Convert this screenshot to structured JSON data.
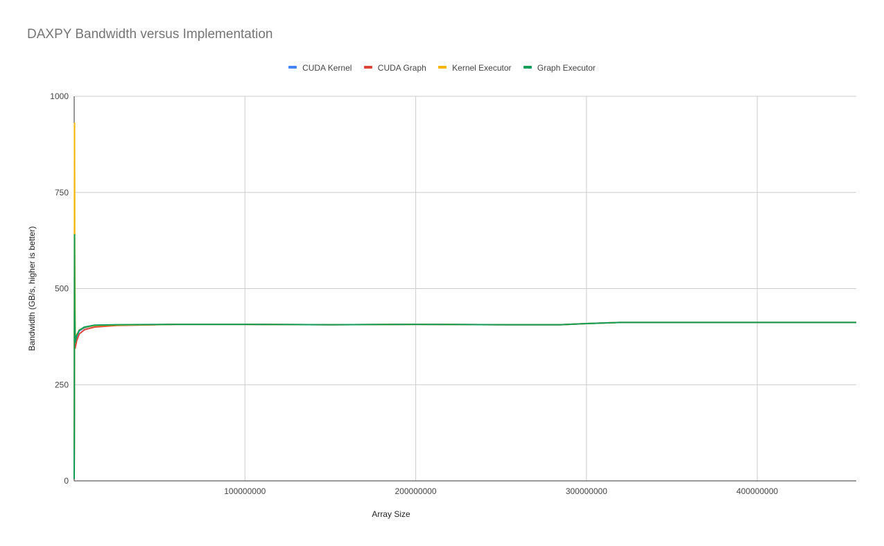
{
  "chart_data": {
    "type": "line",
    "title": "DAXPY Bandwidth versus Implementation",
    "xlabel": "Array Size",
    "ylabel": "Bandwidth (GB/s, higher is better)",
    "xlim": [
      0,
      458000000
    ],
    "ylim": [
      0,
      1000
    ],
    "x_ticks": [
      100000000,
      200000000,
      300000000,
      400000000
    ],
    "x_tick_labels": [
      "100000000",
      "200000000",
      "300000000",
      "400000000"
    ],
    "y_ticks": [
      0,
      250,
      500,
      750,
      1000
    ],
    "y_tick_labels": [
      "0",
      "250",
      "500",
      "750",
      "1000"
    ],
    "grid": true,
    "legend_position": "top-center",
    "series": [
      {
        "name": "CUDA Kernel",
        "color": "#4285f4",
        "points": [
          [
            0,
            5
          ],
          [
            100000,
            160
          ],
          [
            200000,
            560
          ],
          [
            300000,
            420
          ],
          [
            600000,
            355
          ],
          [
            1500000,
            375
          ],
          [
            3000000,
            390
          ],
          [
            6000000,
            398
          ],
          [
            12000000,
            404
          ],
          [
            25000000,
            405
          ],
          [
            60000000,
            407
          ],
          [
            100000000,
            407
          ],
          [
            150000000,
            406
          ],
          [
            200000000,
            407
          ],
          [
            250000000,
            406
          ],
          [
            285000000,
            406
          ],
          [
            300000000,
            409
          ],
          [
            320000000,
            412
          ],
          [
            360000000,
            412
          ],
          [
            400000000,
            412
          ],
          [
            458000000,
            412
          ]
        ]
      },
      {
        "name": "CUDA Graph",
        "color": "#db4437",
        "points": [
          [
            0,
            5
          ],
          [
            100000,
            150
          ],
          [
            200000,
            540
          ],
          [
            300000,
            410
          ],
          [
            600000,
            345
          ],
          [
            1500000,
            365
          ],
          [
            3000000,
            382
          ],
          [
            6000000,
            393
          ],
          [
            12000000,
            400
          ],
          [
            25000000,
            404
          ],
          [
            60000000,
            407
          ],
          [
            100000000,
            407
          ],
          [
            150000000,
            406
          ],
          [
            200000000,
            407
          ],
          [
            250000000,
            406
          ],
          [
            285000000,
            406
          ],
          [
            300000000,
            409
          ],
          [
            320000000,
            412
          ],
          [
            360000000,
            412
          ],
          [
            400000000,
            412
          ],
          [
            458000000,
            412
          ]
        ]
      },
      {
        "name": "Kernel Executor",
        "color": "#f4b400",
        "points": [
          [
            0,
            10
          ],
          [
            100000,
            260
          ],
          [
            200000,
            930
          ],
          [
            300000,
            620
          ],
          [
            600000,
            370
          ],
          [
            1500000,
            380
          ],
          [
            3000000,
            392
          ],
          [
            6000000,
            399
          ],
          [
            12000000,
            404
          ],
          [
            25000000,
            405
          ],
          [
            60000000,
            407
          ],
          [
            100000000,
            407
          ],
          [
            150000000,
            406
          ],
          [
            200000000,
            407
          ],
          [
            250000000,
            406
          ],
          [
            285000000,
            406
          ],
          [
            300000000,
            409
          ],
          [
            320000000,
            412
          ],
          [
            360000000,
            412
          ],
          [
            400000000,
            412
          ],
          [
            458000000,
            412
          ]
        ]
      },
      {
        "name": "Graph Executor",
        "color": "#0f9d58",
        "points": [
          [
            0,
            5
          ],
          [
            100000,
            170
          ],
          [
            200000,
            640
          ],
          [
            300000,
            450
          ],
          [
            600000,
            360
          ],
          [
            1500000,
            378
          ],
          [
            3000000,
            392
          ],
          [
            6000000,
            400
          ],
          [
            12000000,
            405
          ],
          [
            25000000,
            406
          ],
          [
            60000000,
            407
          ],
          [
            100000000,
            407
          ],
          [
            150000000,
            406
          ],
          [
            200000000,
            407
          ],
          [
            250000000,
            406
          ],
          [
            285000000,
            406
          ],
          [
            300000000,
            409
          ],
          [
            320000000,
            412
          ],
          [
            360000000,
            412
          ],
          [
            400000000,
            412
          ],
          [
            458000000,
            412
          ]
        ]
      }
    ]
  },
  "style": {
    "grid_color": "#cccccc",
    "axis_color": "#333333",
    "tick_label_color": "#444444",
    "axis_label_color": "#222222"
  }
}
